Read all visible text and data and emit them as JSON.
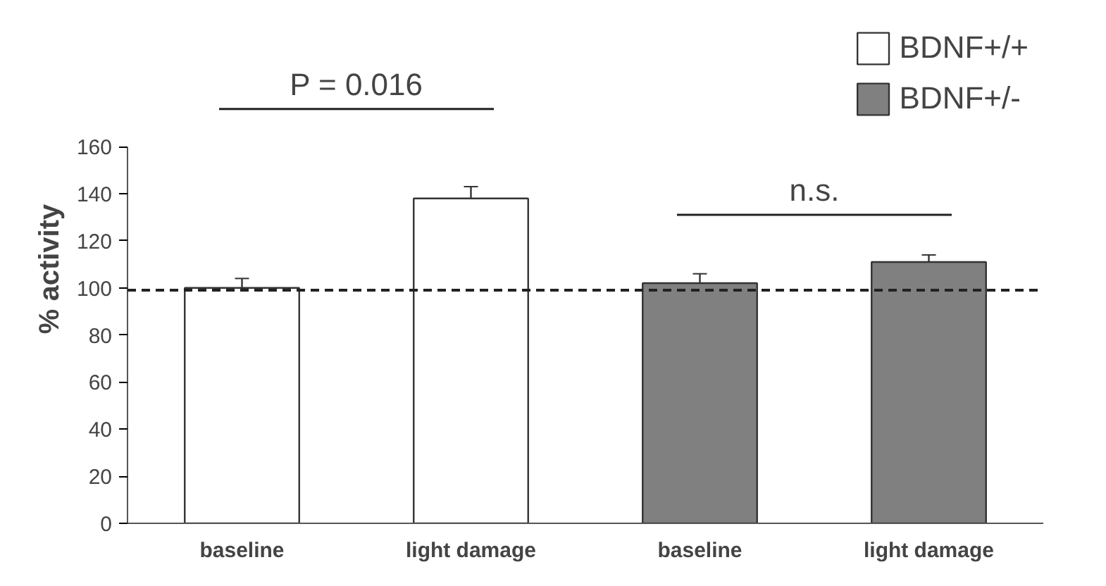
{
  "chart_data": {
    "type": "bar",
    "categories": [
      "baseline",
      "light damage",
      "baseline",
      "light damage"
    ],
    "ylabel": "% activity",
    "series": [
      {
        "name": "BDNF+/+",
        "color": "#ffffff",
        "values": [
          100,
          138,
          null,
          null
        ],
        "errors": [
          4,
          5,
          null,
          null
        ]
      },
      {
        "name": "BDNF+/-",
        "color": "#808080",
        "values": [
          null,
          null,
          102,
          111
        ],
        "errors": [
          null,
          null,
          4,
          3
        ]
      }
    ],
    "ylim": [
      0,
      160
    ],
    "yticks": [
      0,
      20,
      40,
      60,
      80,
      100,
      120,
      140,
      160
    ],
    "ref_lines": [
      {
        "axis": "y",
        "value": 99,
        "line_style": "dashed",
        "color": "#222222"
      }
    ],
    "annotations": [
      "P = 0.016",
      "n.s."
    ],
    "grid": false,
    "legend": "top right"
  }
}
